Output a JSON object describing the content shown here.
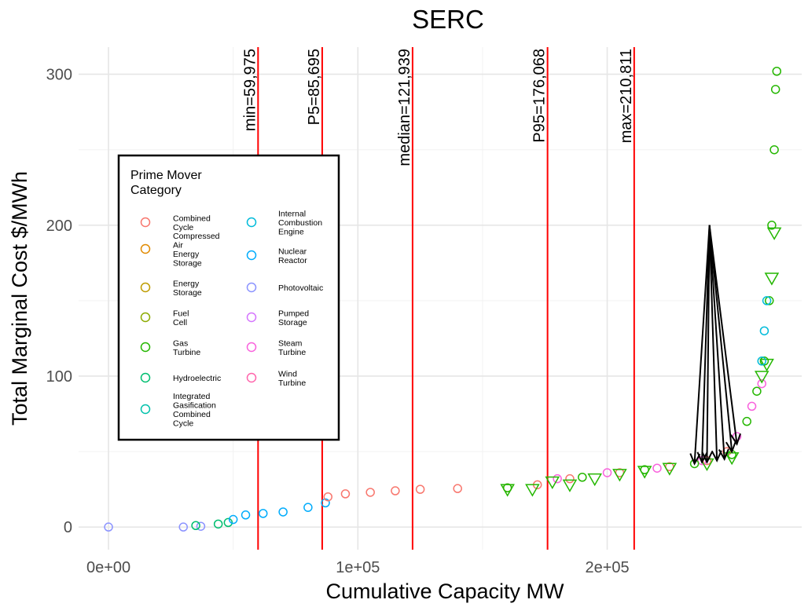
{
  "chart_data": {
    "type": "scatter",
    "title": "SERC",
    "xlabel": "Cumulative Capacity MW",
    "ylabel": "Total Marginal Cost $/MWh",
    "xlim": [
      -12000,
      278000
    ],
    "ylim": [
      -15,
      318
    ],
    "x_ticks": [
      0,
      100000,
      200000
    ],
    "x_tick_labels": [
      "0e+00",
      "1e+05",
      "2e+05"
    ],
    "y_ticks": [
      0,
      100,
      200,
      300
    ],
    "y_tick_labels": [
      "0",
      "100",
      "200",
      "300"
    ],
    "grid": true,
    "vertical_lines": [
      {
        "x": 59975,
        "label": "min=59,975"
      },
      {
        "x": 85695,
        "label": "P5=85,695"
      },
      {
        "x": 121939,
        "label": "median=121,939"
      },
      {
        "x": 176068,
        "label": "P95=176,068"
      },
      {
        "x": 210811,
        "label": "max=210,811"
      }
    ],
    "vline_color": "#ff0000",
    "legend": {
      "title": [
        "Prime Mover",
        "Category"
      ],
      "position": "left",
      "entries": [
        {
          "label": [
            "Combined",
            "Cycle"
          ],
          "color": "#F8766D"
        },
        {
          "label": [
            "Compressed",
            "Air",
            "Energy",
            "Storage"
          ],
          "color": "#E18A00"
        },
        {
          "label": [
            "Energy",
            "Storage"
          ],
          "color": "#BE9C00"
        },
        {
          "label": [
            "Fuel",
            "Cell"
          ],
          "color": "#8CAB00"
        },
        {
          "label": [
            "Gas",
            "Turbine"
          ],
          "color": "#24B700"
        },
        {
          "label": [
            "Hydroelectric"
          ],
          "color": "#00BE70"
        },
        {
          "label": [
            "Integrated",
            "Gasification",
            "Combined",
            "Cycle"
          ],
          "color": "#00C1AB"
        },
        {
          "label": [
            "Internal",
            "Combustion",
            "Engine"
          ],
          "color": "#00BBDA"
        },
        {
          "label": [
            "Nuclear",
            "Reactor"
          ],
          "color": "#00ACFC"
        },
        {
          "label": [
            "Photovoltaic"
          ],
          "color": "#8B93FF"
        },
        {
          "label": [
            "Pumped",
            "Storage"
          ],
          "color": "#D575FE"
        },
        {
          "label": [
            "Steam",
            "Turbine"
          ],
          "color": "#F962DD"
        },
        {
          "label": [
            "Wind",
            "Turbine"
          ],
          "color": "#FF65AC"
        }
      ]
    },
    "series": [
      {
        "name": "Photovoltaic",
        "color": "#8B93FF",
        "marker": "circle",
        "points": [
          [
            0,
            0
          ],
          [
            30000,
            0
          ],
          [
            37000,
            0.5
          ]
        ]
      },
      {
        "name": "Hydroelectric",
        "color": "#00BE70",
        "marker": "circle",
        "points": [
          [
            35000,
            1
          ],
          [
            44000,
            2
          ],
          [
            48000,
            3
          ]
        ]
      },
      {
        "name": "Nuclear Reactor",
        "color": "#00ACFC",
        "marker": "circle",
        "points": [
          [
            50000,
            5
          ],
          [
            55000,
            8
          ],
          [
            62000,
            9
          ],
          [
            70000,
            10
          ],
          [
            80000,
            13
          ],
          [
            87000,
            16
          ]
        ]
      },
      {
        "name": "Combined Cycle",
        "color": "#F8766D",
        "marker": "circle",
        "points": [
          [
            88000,
            20
          ],
          [
            95000,
            22
          ],
          [
            105000,
            23
          ],
          [
            115000,
            24
          ],
          [
            125000,
            25
          ],
          [
            140000,
            25.5
          ],
          [
            160000,
            26
          ],
          [
            172000,
            28
          ],
          [
            185000,
            32
          ],
          [
            205000,
            36
          ],
          [
            225000,
            40
          ],
          [
            240000,
            44
          ],
          [
            248000,
            50
          ]
        ]
      },
      {
        "name": "Steam Turbine",
        "color": "#F962DD",
        "marker": "circle",
        "points": [
          [
            180000,
            32
          ],
          [
            200000,
            36
          ],
          [
            220000,
            39
          ],
          [
            238000,
            44
          ],
          [
            252000,
            60
          ],
          [
            258000,
            80
          ],
          [
            262000,
            95
          ]
        ]
      },
      {
        "name": "Gas Turbine",
        "color": "#24B700",
        "marker": "circle",
        "points": [
          [
            160000,
            26
          ],
          [
            190000,
            33
          ],
          [
            215000,
            38
          ],
          [
            235000,
            42
          ],
          [
            250000,
            48
          ],
          [
            256000,
            70
          ],
          [
            260000,
            90
          ],
          [
            263000,
            110
          ],
          [
            265000,
            150
          ],
          [
            266000,
            200
          ],
          [
            267000,
            250
          ],
          [
            267500,
            290
          ],
          [
            268000,
            302
          ]
        ]
      },
      {
        "name": "Gas Turbine",
        "color": "#24B700",
        "marker": "triangle-down",
        "points": [
          [
            160000,
            25
          ],
          [
            170000,
            25
          ],
          [
            178000,
            30
          ],
          [
            185000,
            28
          ],
          [
            195000,
            32
          ],
          [
            205000,
            35
          ],
          [
            215000,
            37
          ],
          [
            225000,
            39
          ],
          [
            240000,
            42
          ],
          [
            250000,
            46
          ],
          [
            262000,
            100
          ],
          [
            264000,
            108
          ],
          [
            266000,
            165
          ],
          [
            267000,
            195
          ]
        ]
      },
      {
        "name": "Internal Combustion Engine",
        "color": "#00BBDA",
        "marker": "circle",
        "points": [
          [
            262000,
            110
          ],
          [
            263000,
            130
          ],
          [
            264000,
            150
          ]
        ]
      }
    ],
    "annotation_arrows": {
      "from": [
        241000,
        200
      ],
      "to": [
        [
          235000,
          42
        ],
        [
          238000,
          43
        ],
        [
          240000,
          43
        ],
        [
          244000,
          44
        ],
        [
          247000,
          45
        ],
        [
          250000,
          50
        ],
        [
          252000,
          55
        ]
      ]
    }
  }
}
